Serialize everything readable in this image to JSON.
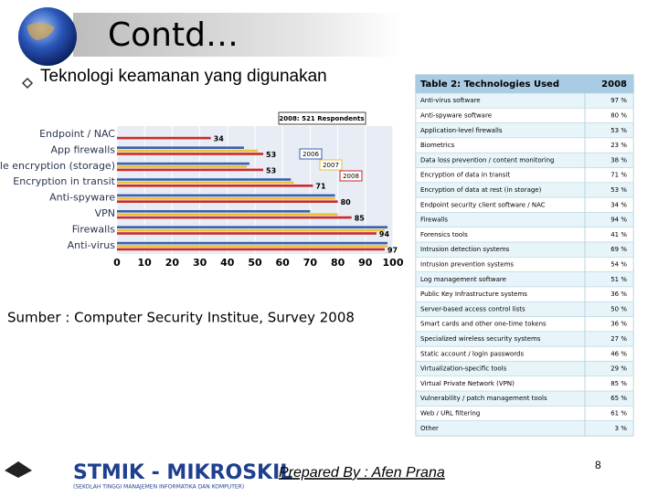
{
  "title": "Contd…",
  "bullet": "Teknologi keamanan yang digunakan",
  "chart_data": {
    "type": "bar",
    "orientation": "horizontal",
    "subtitle": "2008: 521 Respondents",
    "categories": [
      "Endpoint / NAC",
      "App firewalls",
      "File encryption (storage)",
      "Encryption in transit",
      "Anti-spyware",
      "VPN",
      "Firewalls",
      "Anti-virus"
    ],
    "series": [
      {
        "name": "2006",
        "color": "#3b5fb0",
        "values": [
          null,
          46,
          48,
          63,
          79,
          70,
          98,
          98
        ]
      },
      {
        "name": "2007",
        "color": "#e8c23a",
        "values": [
          null,
          51,
          47,
          64,
          79,
          80,
          97,
          98
        ]
      },
      {
        "name": "2008",
        "color": "#cc2a2a",
        "values": [
          34,
          53,
          53,
          71,
          80,
          85,
          94,
          97
        ]
      }
    ],
    "xlim": [
      0,
      100
    ],
    "xticks": [
      0,
      10,
      20,
      30,
      40,
      50,
      60,
      70,
      80,
      90,
      100
    ],
    "grid": true
  },
  "source": "Sumber : Computer Security Institue, Survey 2008",
  "table": {
    "header": [
      "Table 2: Technologies Used",
      "2008"
    ],
    "rows": [
      [
        "Anti-virus software",
        "97 %"
      ],
      [
        "Anti-spyware software",
        "80 %"
      ],
      [
        "Application-level firewalls",
        "53 %"
      ],
      [
        "Biometrics",
        "23 %"
      ],
      [
        "Data loss prevention / content monitoring",
        "38 %"
      ],
      [
        "Encryption of data in transit",
        "71 %"
      ],
      [
        "Encryption of data at rest (in storage)",
        "53 %"
      ],
      [
        "Endpoint security client software / NAC",
        "34 %"
      ],
      [
        "Firewalls",
        "94 %"
      ],
      [
        "Forensics tools",
        "41 %"
      ],
      [
        "Intrusion detection systems",
        "69 %"
      ],
      [
        "Intrusion prevention systems",
        "54 %"
      ],
      [
        "Log management software",
        "51 %"
      ],
      [
        "Public Key Infrastructure systems",
        "36 %"
      ],
      [
        "Server-based access control lists",
        "50 %"
      ],
      [
        "Smart cards and other one-time tokens",
        "36 %"
      ],
      [
        "Specialized wireless security systems",
        "27 %"
      ],
      [
        "Static account / login passwords",
        "46 %"
      ],
      [
        "Virtualization-specific tools",
        "29 %"
      ],
      [
        "Virtual Private Network (VPN)",
        "85 %"
      ],
      [
        "Vulnerability / patch management tools",
        "65 %"
      ],
      [
        "Web / URL filtering",
        "61 %"
      ],
      [
        "Other",
        "3 %"
      ]
    ]
  },
  "footer": {
    "logo": "STMIK - MIKROSKIL",
    "logo_sub": "(SEKOLAH TINGGI MANAJEMEN INFORMATIKA DAN KOMPUTER)",
    "author": "Prepared By : Afen Prana",
    "page": "8"
  }
}
